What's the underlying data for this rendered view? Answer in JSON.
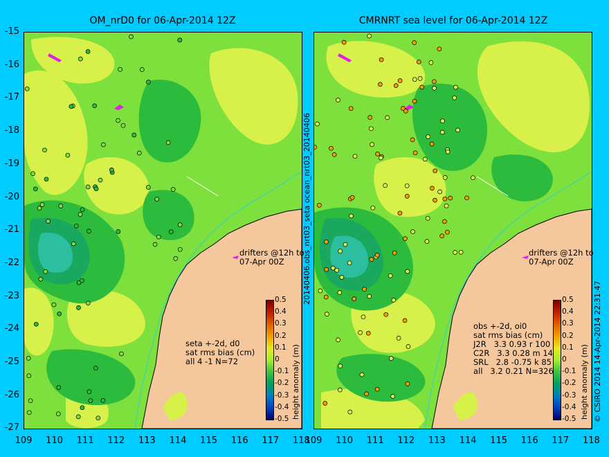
{
  "left_panel": {
    "title": "OM_nrD0 for 06-Apr-2014 12Z",
    "drifters_label": "drifters @12h to\n07-Apr 00Z",
    "stats": "seta +-2d, d0\nsat rms bias (cm)\nall 4 -1 N=72"
  },
  "right_panel": {
    "title": "CMRNRT sea level  for 06-Apr-2014 12Z",
    "drifters_label": "drifters @12h to\n07-Apr 00Z",
    "stats": "obs +-2d, oi0\nsat rms bias (cm)\nJ2R   3.3 0.93 r 100\nC2R   3.3 0.28 m 141\nSRL   2.8 -0.75 k 85\nall   3.2 0.21 N=326"
  },
  "middle_label": "20140406.obs_nrt03_seta    ocean_nrt03_20140406",
  "credit": "© CSIRO 2014  14-Apr-2014 22:31:47",
  "axes": {
    "y_ticks": [
      "-15",
      "-16",
      "-17",
      "-18",
      "-19",
      "-20",
      "-21",
      "-22",
      "-23",
      "-24",
      "-25",
      "-26",
      "-27"
    ],
    "x_ticks": [
      "109",
      "110",
      "111",
      "112",
      "113",
      "114",
      "115",
      "116",
      "117",
      "118"
    ]
  },
  "colorbar": {
    "title": "height anomaly (m)",
    "labels": [
      "0.5",
      "0.4",
      "0.3",
      "0.2",
      "0.1",
      "0",
      "-0.1",
      "-0.2",
      "-0.3",
      "-0.4",
      "-0.5"
    ],
    "colors": [
      "#7a0000",
      "#c02000",
      "#e06000",
      "#f0a000",
      "#e8e820",
      "#a8ee30",
      "#40c040",
      "#00a060",
      "#0080c0",
      "#0040c0",
      "#00006a"
    ]
  },
  "map_colors": {
    "land": "#f5c79c",
    "coastline": "#000000",
    "level_hi": "#d8f04a",
    "level_mid": "#7ee03c",
    "level_lo": "#2cbb3c",
    "level_lower": "#1aa860",
    "level_lowest": "#2bbfa0",
    "drifter": "#e020e0",
    "track": "#30d0d0"
  }
}
